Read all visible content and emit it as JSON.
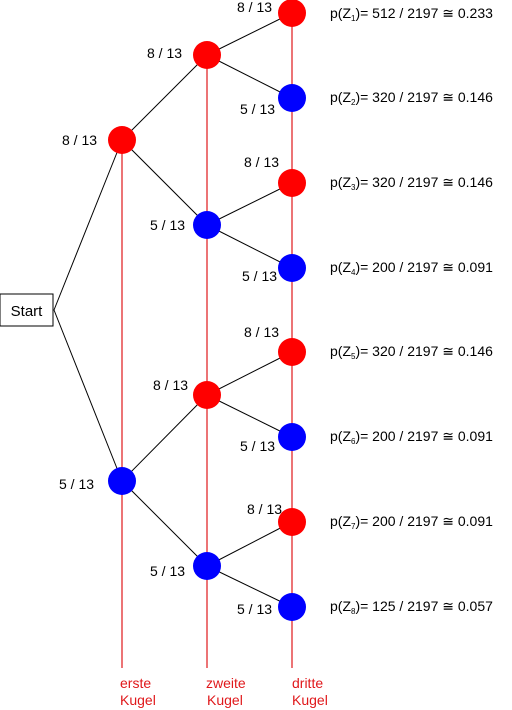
{
  "start_label": "Start",
  "colors": {
    "red": "#ff0000",
    "blue": "#0000ff",
    "axis": "#e0181b",
    "edge": "#000000"
  },
  "level_labels": [
    {
      "line1": "erste",
      "line2": "Kugel"
    },
    {
      "line1": "zweite",
      "line2": "Kugel"
    },
    {
      "line1": "dritte",
      "line2": "Kugel"
    }
  ],
  "nodes": [
    {
      "id": "l1-red",
      "color": "red",
      "prob": "8 / 13"
    },
    {
      "id": "l1-blue",
      "color": "blue",
      "prob": "5 / 13"
    },
    {
      "id": "l2-red-red",
      "color": "red",
      "prob": "8 / 13"
    },
    {
      "id": "l2-red-blue",
      "color": "blue",
      "prob": "5 / 13"
    },
    {
      "id": "l2-blue-red",
      "color": "red",
      "prob": "8 / 13"
    },
    {
      "id": "l2-blue-blue",
      "color": "blue",
      "prob": "5 / 13"
    },
    {
      "id": "l3-1",
      "color": "red",
      "prob": "8 / 13"
    },
    {
      "id": "l3-2",
      "color": "blue",
      "prob": "5 / 13"
    },
    {
      "id": "l3-3",
      "color": "red",
      "prob": "8 / 13"
    },
    {
      "id": "l3-4",
      "color": "blue",
      "prob": "5 / 13"
    },
    {
      "id": "l3-5",
      "color": "red",
      "prob": "8 / 13"
    },
    {
      "id": "l3-6",
      "color": "blue",
      "prob": "5 / 13"
    },
    {
      "id": "l3-7",
      "color": "red",
      "prob": "8 / 13"
    },
    {
      "id": "l3-8",
      "color": "blue",
      "prob": "5 / 13"
    }
  ],
  "results": [
    {
      "var": "p(Z",
      "sub": "1",
      "rest": ")= 512 / 2197 ≅ 0.233"
    },
    {
      "var": "p(Z",
      "sub": "2",
      "rest": ")= 320 / 2197 ≅ 0.146"
    },
    {
      "var": "p(Z",
      "sub": "3",
      "rest": ")= 320 / 2197 ≅ 0.146"
    },
    {
      "var": "p(Z",
      "sub": "4",
      "rest": ")= 200 / 2197 ≅ 0.091"
    },
    {
      "var": "p(Z",
      "sub": "5",
      "rest": ")= 320 / 2197 ≅ 0.146"
    },
    {
      "var": "p(Z",
      "sub": "6",
      "rest": ")= 200 / 2197 ≅ 0.091"
    },
    {
      "var": "p(Z",
      "sub": "7",
      "rest": ")= 200 / 2197 ≅ 0.091"
    },
    {
      "var": "p(Z",
      "sub": "8",
      "rest": ")= 125 / 2197 ≅ 0.057"
    }
  ]
}
